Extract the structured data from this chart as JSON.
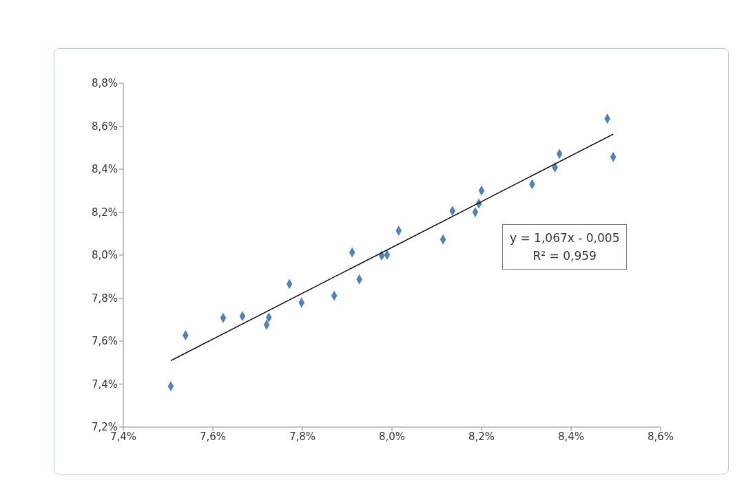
{
  "chart_data": {
    "type": "scatter",
    "grid": false,
    "xlim": [
      7.4,
      8.6
    ],
    "xticks": [
      {
        "value": 7.4,
        "label": "7,4%"
      },
      {
        "value": 7.6,
        "label": "7,6%"
      },
      {
        "value": 7.8,
        "label": "7,8%"
      },
      {
        "value": 8.0,
        "label": "8,0%"
      },
      {
        "value": 8.2,
        "label": "8,2%"
      },
      {
        "value": 8.4,
        "label": "8,4%"
      },
      {
        "value": 8.6,
        "label": "8,6%"
      }
    ],
    "ylim": [
      7.2,
      8.8
    ],
    "yticks": [
      {
        "value": 7.2,
        "label": "7,2%"
      },
      {
        "value": 7.4,
        "label": "7,4%"
      },
      {
        "value": 7.6,
        "label": "7,6%"
      },
      {
        "value": 7.8,
        "label": "7,8%"
      },
      {
        "value": 8.0,
        "label": "8,0%"
      },
      {
        "value": 8.2,
        "label": "8,2%"
      },
      {
        "value": 8.4,
        "label": "8,4%"
      },
      {
        "value": 8.6,
        "label": "8,6%"
      },
      {
        "value": 8.8,
        "label": "8,8%"
      }
    ],
    "series": [
      {
        "marker": "diamond",
        "color": "#4f81bd",
        "x": [
          7.506,
          7.539,
          7.623,
          7.666,
          7.72,
          7.725,
          7.771,
          7.798,
          7.871,
          7.911,
          7.927,
          7.977,
          7.989,
          8.015,
          8.114,
          8.135,
          8.186,
          8.194,
          8.2,
          8.313,
          8.364,
          8.374,
          8.481,
          8.494
        ],
        "values": [
          7.39,
          7.627,
          7.708,
          7.716,
          7.676,
          7.71,
          7.866,
          7.779,
          7.811,
          8.013,
          7.887,
          7.998,
          8.002,
          8.114,
          8.073,
          8.206,
          8.2,
          8.24,
          8.3,
          8.33,
          8.408,
          8.471,
          8.635,
          8.457
        ]
      },
      {
        "type": "line",
        "color": "#000000",
        "x": [
          7.506,
          8.494
        ],
        "values": [
          7.509,
          8.563
        ]
      }
    ],
    "annotations": [
      "y = 1,067x - 0,005",
      "R² = 0,959"
    ]
  }
}
